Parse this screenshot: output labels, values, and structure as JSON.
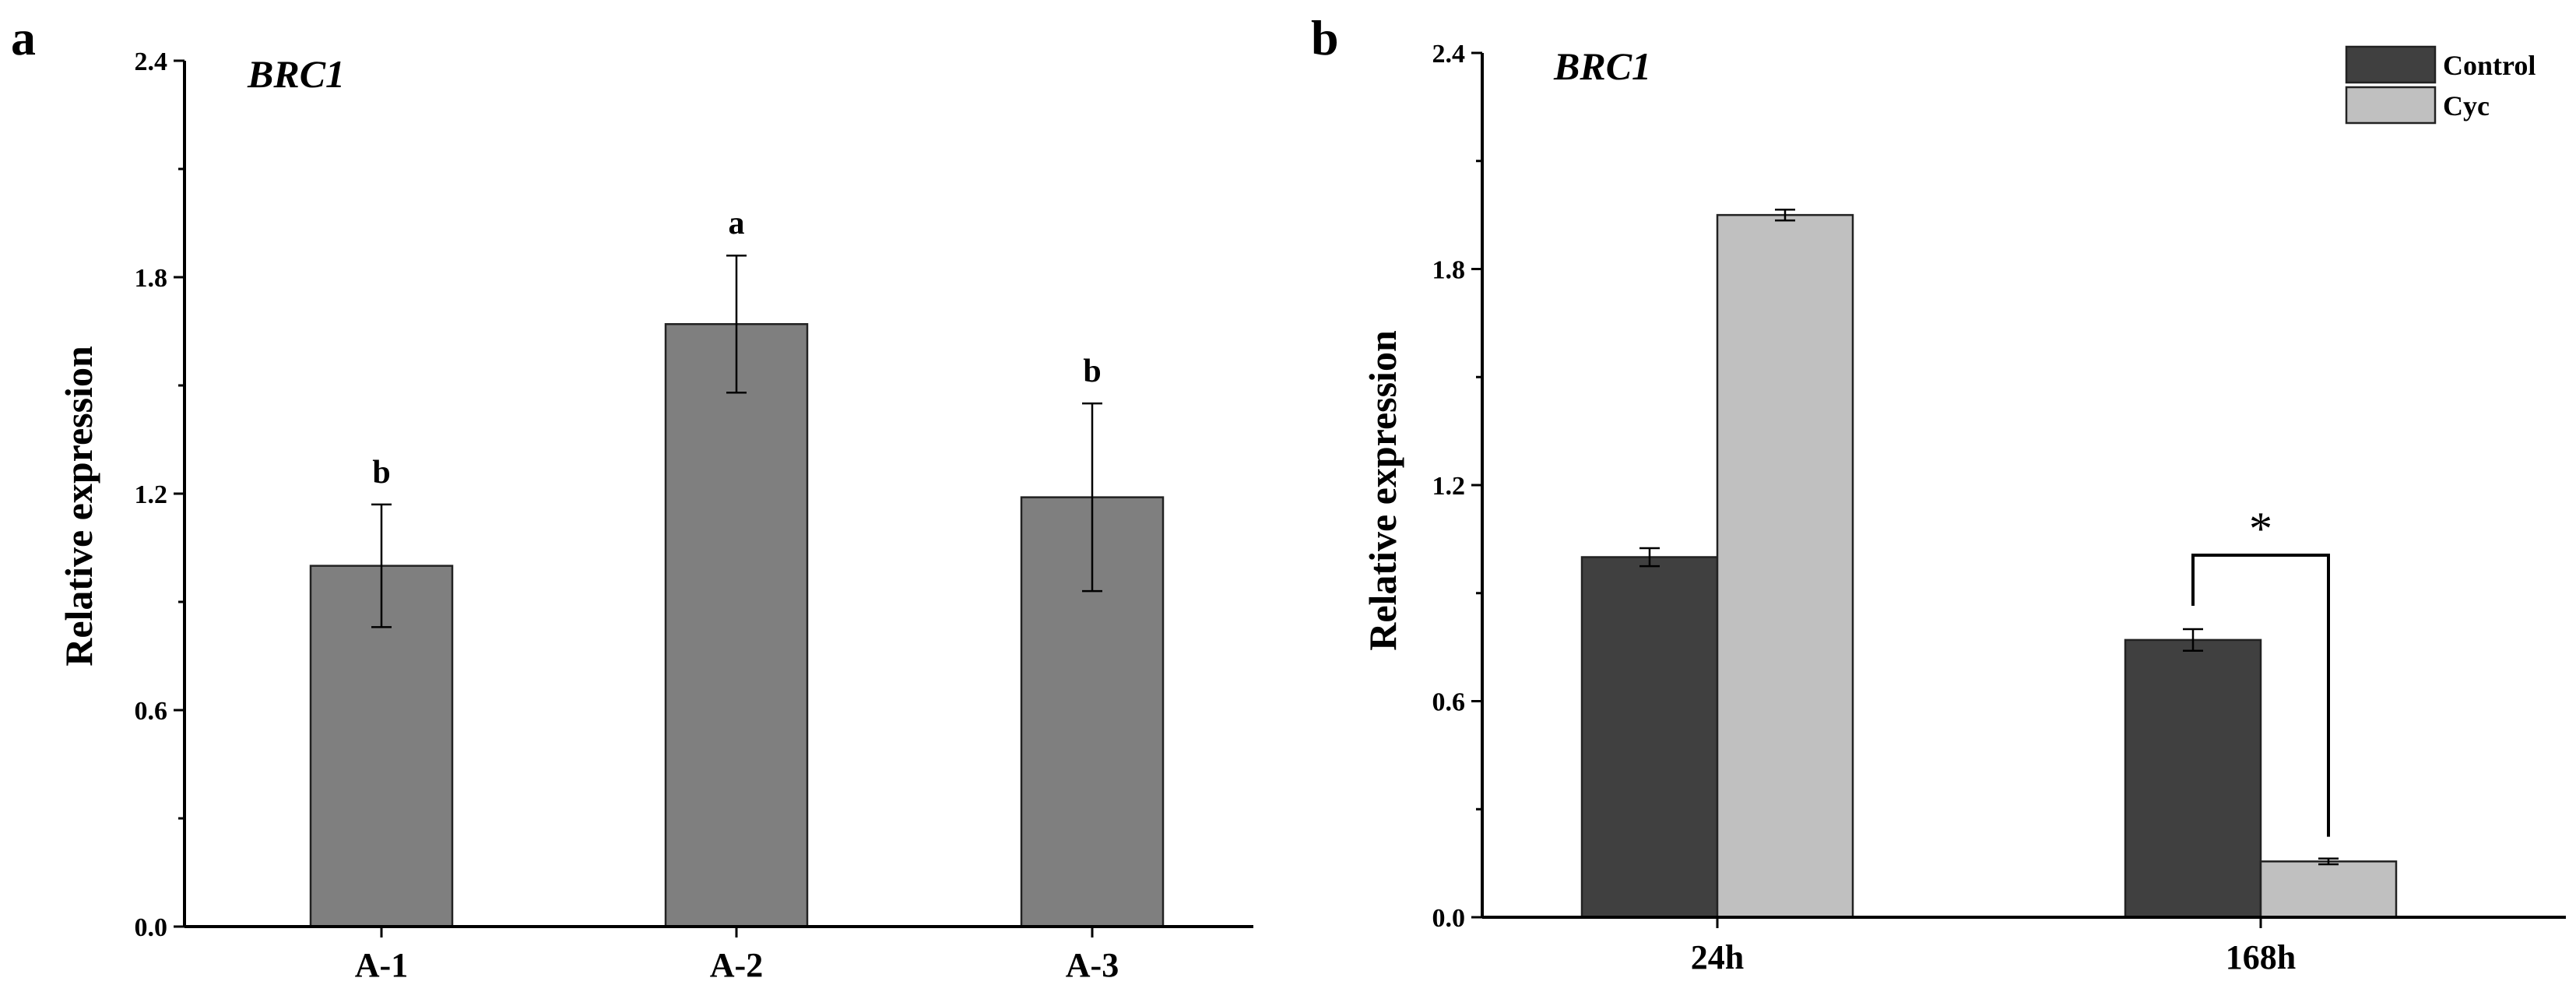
{
  "chart_data": [
    {
      "panel": "a",
      "type": "bar",
      "title": "BRC1",
      "ylabel": "Relative expression",
      "xlabel": "",
      "ylim": [
        0,
        2.4
      ],
      "yticks": [
        "0.0",
        "0.6",
        "1.2",
        "1.8",
        "2.4"
      ],
      "categories": [
        "A-1",
        "A-2",
        "A-3"
      ],
      "values": [
        1.0,
        1.67,
        1.19
      ],
      "errors": [
        0.17,
        0.19,
        0.26
      ],
      "significance": [
        "b",
        "a",
        "b"
      ],
      "bar_color": "#7f7f7f",
      "grid": false
    },
    {
      "panel": "b",
      "type": "bar",
      "title": "BRC1",
      "ylabel": "Relative expression",
      "xlabel": "",
      "ylim": [
        0,
        2.4
      ],
      "yticks": [
        "0.0",
        "0.6",
        "1.2",
        "1.8",
        "2.4"
      ],
      "categories": [
        "24h",
        "168h"
      ],
      "series": [
        {
          "name": "Control",
          "values": [
            1.0,
            0.77
          ],
          "errors": [
            0.025,
            0.03
          ],
          "color": "#404040"
        },
        {
          "name": "Cyc",
          "values": [
            1.95,
            0.155
          ],
          "errors": [
            0.015,
            0.008
          ],
          "color": "#c0c0c0"
        }
      ],
      "annotations": [
        {
          "category": "168h",
          "text": "*"
        }
      ],
      "legend": "top-right",
      "grid": false
    }
  ]
}
